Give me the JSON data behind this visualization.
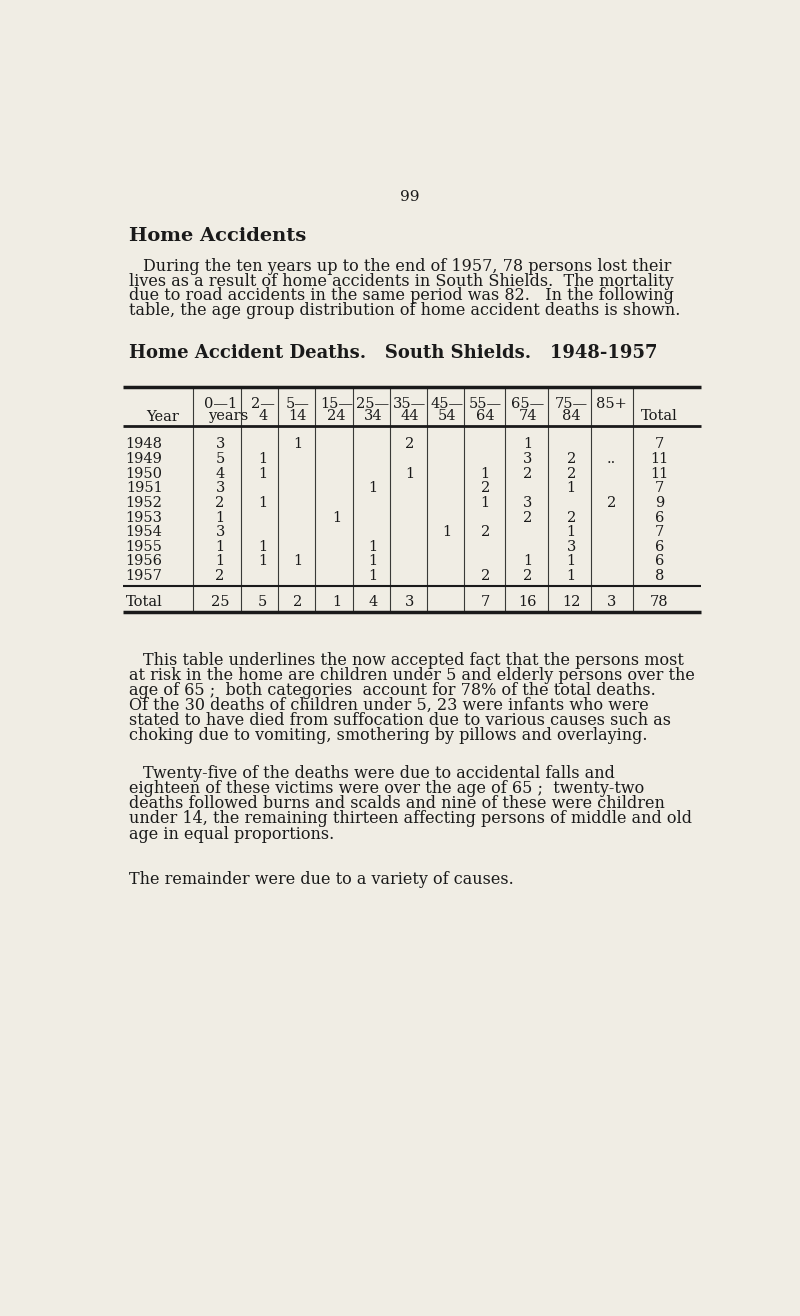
{
  "page_number": "99",
  "bg_color": "#f0ede4",
  "title_bold": "Home Accidents",
  "paragraph1": "During the ten years up to the end of 1957, 78 persons lost their\nlives as a result of home accidents in South Shields.  The mortality\ndue to road accidents in the same period was 82.   In the following\ntable, the age group distribution of home accident deaths is shown.",
  "table_title": "Home Accident Deaths.   South Shields.   1948-1957",
  "years": [
    "1948",
    "1949",
    "1950",
    "1951",
    "1952",
    "1953",
    "1954",
    "1955",
    "1956",
    "1957"
  ],
  "table_data": [
    [
      "3",
      "",
      "1",
      "",
      "",
      "2",
      "",
      "",
      "1",
      "",
      "",
      "7"
    ],
    [
      "5",
      "1",
      "",
      "",
      "",
      "",
      "",
      "",
      "3",
      "2",
      "..",
      "11"
    ],
    [
      "4",
      "1",
      "",
      "",
      "",
      "1",
      "",
      "1",
      "2",
      "2",
      "",
      "11"
    ],
    [
      "3",
      "",
      "",
      "",
      "1",
      "",
      "",
      "2",
      "",
      "1",
      "",
      "7"
    ],
    [
      "2",
      "1",
      "",
      "",
      "",
      "",
      "",
      "1",
      "3",
      "",
      "2",
      "9"
    ],
    [
      "1",
      "",
      "",
      "1",
      "",
      "",
      "",
      "",
      "2",
      "2",
      "",
      "6"
    ],
    [
      "3",
      "",
      "",
      "",
      "",
      "",
      "1",
      "2",
      "",
      "1",
      "",
      "7"
    ],
    [
      "1",
      "1",
      "",
      "",
      "1",
      "",
      "",
      "",
      "",
      "3",
      "",
      "6"
    ],
    [
      "1",
      "1",
      "1",
      "",
      "1",
      "",
      "",
      "",
      "1",
      "1",
      "",
      "6"
    ],
    [
      "2",
      "",
      "",
      "",
      "1",
      "",
      "",
      "2",
      "2",
      "1",
      "",
      "8"
    ]
  ],
  "totals": [
    "25",
    "5",
    "2",
    "1",
    "4",
    "3",
    "",
    "7",
    "16",
    "12",
    "3",
    "78"
  ],
  "paragraph2": "This table underlines the now accepted fact that the persons most\nat risk in the home are children under 5 and elderly persons over the\nage of 65 ;  both categories  account for 78% of the total deaths.\nOf the 30 deaths of children under 5, 23 were infants who were\nstated to have died from suffocation due to various causes such as\nchoking due to vomiting, smothering by pillows and overlaying.",
  "paragraph3": "Twenty-five of the deaths were due to accidental falls and\neighteen of these victims were over the age of 65 ;  twenty-two\ndeaths followed burns and scalds and nine of these were children\nunder 14, the remaining thirteen affecting persons of middle and old\nage in equal proportions.",
  "paragraph4": "The remainder were due to a variety of causes.",
  "text_color": "#1a1a1a"
}
